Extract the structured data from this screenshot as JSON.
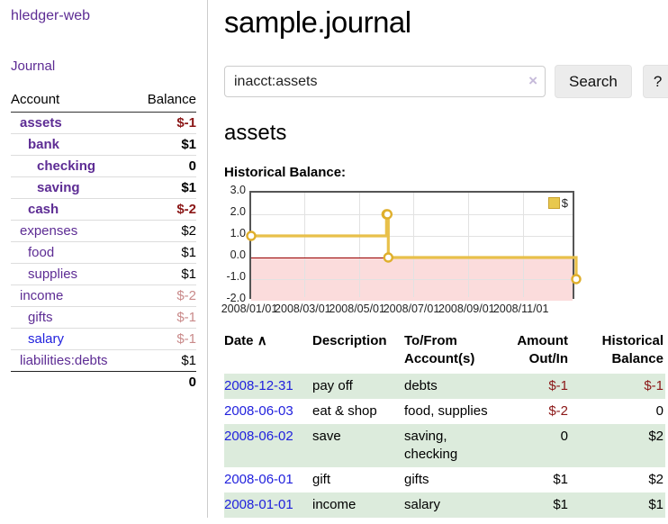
{
  "sidebar": {
    "brand": "hledger-web",
    "nav": {
      "journal": "Journal"
    },
    "accounts_table": {
      "headers": {
        "account": "Account",
        "balance": "Balance"
      },
      "rows": [
        {
          "name": "assets",
          "balance": "$-1"
        },
        {
          "name": "bank",
          "balance": "$1"
        },
        {
          "name": "checking",
          "balance": "0"
        },
        {
          "name": "saving",
          "balance": "$1"
        },
        {
          "name": "cash",
          "balance": "$-2"
        },
        {
          "name": "expenses",
          "balance": "$2"
        },
        {
          "name": "food",
          "balance": "$1"
        },
        {
          "name": "supplies",
          "balance": "$1"
        },
        {
          "name": "income",
          "balance": "$-2"
        },
        {
          "name": "gifts",
          "balance": "$-1"
        },
        {
          "name": "salary",
          "balance": "$-1"
        },
        {
          "name": "liabilities:debts",
          "balance": "$1"
        }
      ],
      "total": "0"
    }
  },
  "header": {
    "title": "sample.journal"
  },
  "search": {
    "query": "inacct:assets",
    "clear_icon": "×",
    "search_button": "Search",
    "help_button": "?"
  },
  "account_view": {
    "title": "assets",
    "chart_label": "Historical Balance:"
  },
  "chart_data": {
    "type": "line",
    "style": "step",
    "title": "Historical Balance",
    "legend": {
      "label": "$",
      "position": "top-right"
    },
    "ylim": [
      -2,
      3
    ],
    "yticks": [
      "3.0",
      "2.0",
      "1.0",
      "0.0",
      "-1.0",
      "-2.0"
    ],
    "x_range_days": 365,
    "xticks": [
      {
        "label": "2008/01/01",
        "day": 0
      },
      {
        "label": "2008/03/01",
        "day": 60
      },
      {
        "label": "2008/05/01",
        "day": 121
      },
      {
        "label": "2008/07/01",
        "day": 182
      },
      {
        "label": "2008/09/01",
        "day": 244
      },
      {
        "label": "2008/11/01",
        "day": 305
      }
    ],
    "series": [
      {
        "name": "$",
        "points": [
          {
            "date": "2008/01/01",
            "day": 0,
            "value": 1
          },
          {
            "date": "2008/06/01",
            "day": 152,
            "value": 2
          },
          {
            "date": "2008/06/02",
            "day": 153,
            "value": 2
          },
          {
            "date": "2008/06/03",
            "day": 154,
            "value": 0
          },
          {
            "date": "2008/12/31",
            "day": 365,
            "value": -1
          }
        ]
      }
    ],
    "line_color": "#e8c04a",
    "marker_stroke": "#dfaf2c",
    "negative_region_color": "#fbdcdc",
    "zero_line_color": "#990000"
  },
  "register_table": {
    "headers": {
      "date": "Date",
      "sort_arrow": "∧",
      "description": "Description",
      "account": "To/From Account(s)",
      "amount": "Amount Out/In",
      "balance": "Historical Balance"
    },
    "rows": [
      {
        "date": "2008-12-31",
        "description": "pay off",
        "account": "debts",
        "amount": "$-1",
        "balance": "$-1"
      },
      {
        "date": "2008-06-03",
        "description": "eat & shop",
        "account": "food, supplies",
        "amount": "$-2",
        "balance": "0"
      },
      {
        "date": "2008-06-02",
        "description": "save",
        "account": "saving, checking",
        "amount": "0",
        "balance": "$2"
      },
      {
        "date": "2008-06-01",
        "description": "gift",
        "account": "gifts",
        "amount": "$1",
        "balance": "$2"
      },
      {
        "date": "2008-01-01",
        "description": "income",
        "account": "salary",
        "amount": "$1",
        "balance": "$1"
      }
    ]
  }
}
